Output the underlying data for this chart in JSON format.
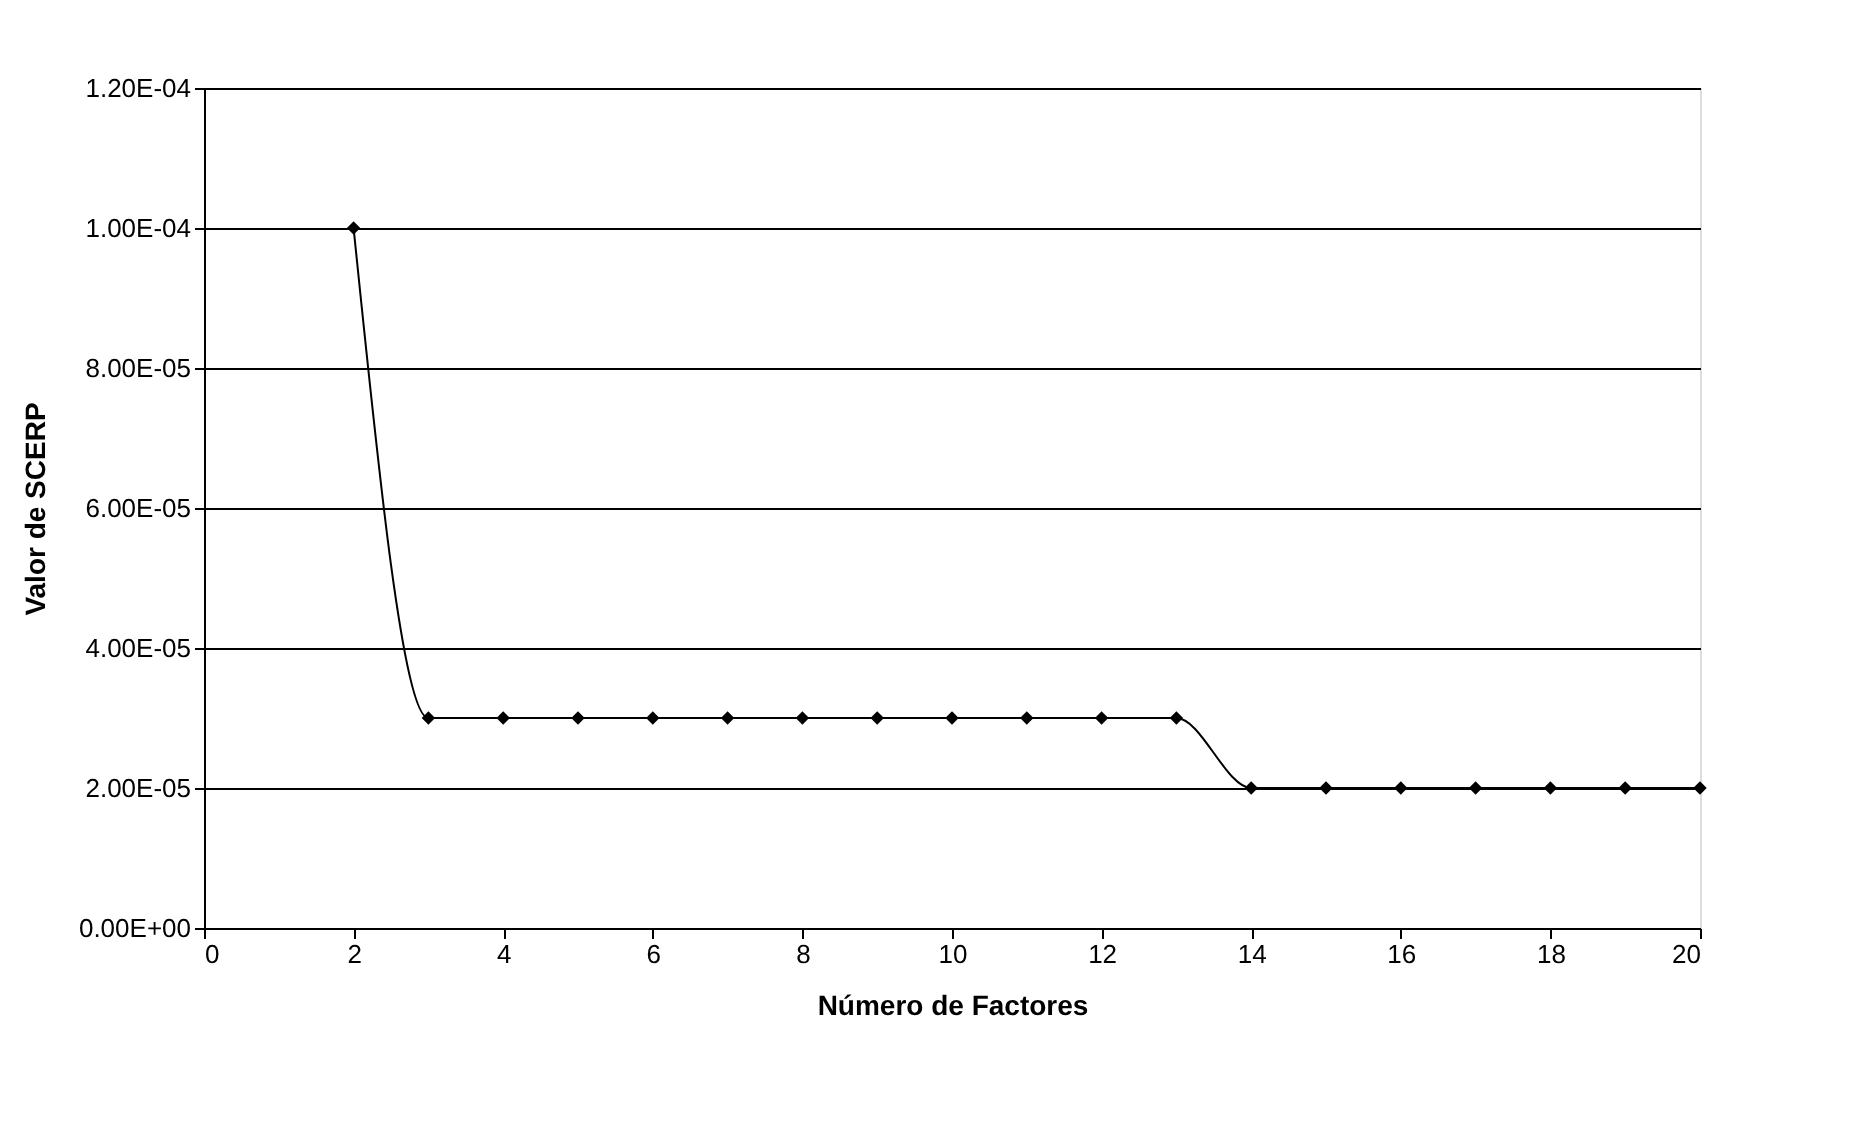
{
  "chart_data": {
    "type": "line",
    "xlabel": "Número de Factores",
    "ylabel": "Valor de SCERP",
    "x": [
      2,
      3,
      4,
      5,
      6,
      7,
      8,
      9,
      10,
      11,
      12,
      13,
      14,
      15,
      16,
      17,
      18,
      19,
      20
    ],
    "series": [
      {
        "color": "#000000",
        "values": [
          0.0001,
          3e-05,
          3e-05,
          3e-05,
          3e-05,
          3e-05,
          3e-05,
          3e-05,
          3e-05,
          3e-05,
          3e-05,
          3e-05,
          2e-05,
          2e-05,
          2e-05,
          2e-05,
          2e-05,
          2e-05,
          2e-05
        ]
      }
    ],
    "xlim": [
      0,
      20
    ],
    "xticks": [
      0,
      2,
      4,
      6,
      8,
      10,
      12,
      14,
      16,
      18,
      20
    ],
    "ylim": [
      0,
      0.00012
    ],
    "yticks": [
      {
        "value": 0,
        "label": "0.00E+00"
      },
      {
        "value": 2e-05,
        "label": "2.00E-05"
      },
      {
        "value": 4e-05,
        "label": "4.00E-05"
      },
      {
        "value": 6e-05,
        "label": "6.00E-05"
      },
      {
        "value": 8e-05,
        "label": "8.00E-05"
      },
      {
        "value": 0.0001,
        "label": "1.00E-04"
      },
      {
        "value": 0.00012,
        "label": "1.20E-04"
      }
    ],
    "grid": "y",
    "marker": "diamond",
    "line_style": "solid"
  }
}
